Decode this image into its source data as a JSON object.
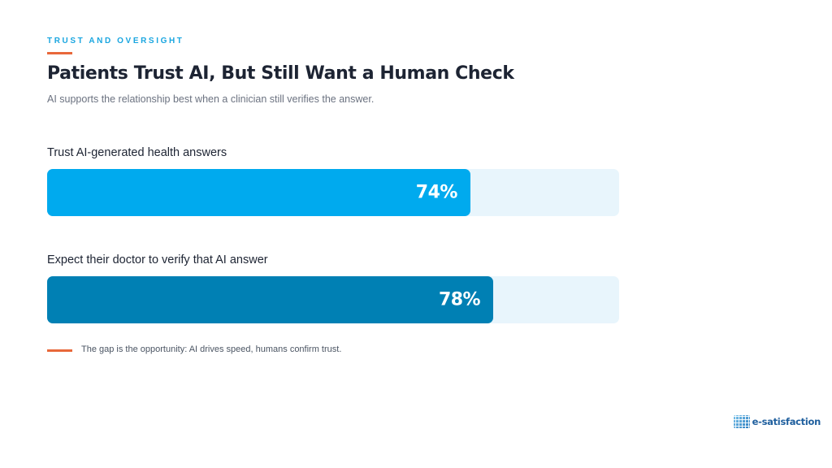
{
  "header": {
    "eyebrow": "TRUST AND OVERSIGHT",
    "title": "Patients Trust AI, But Still Want a Human Check",
    "subtitle": "AI supports the relationship best when a clinician still verifies the answer."
  },
  "chart_data": {
    "type": "bar",
    "orientation": "horizontal",
    "max": 100,
    "categories": [
      "Trust AI-generated health answers",
      "Expect their doctor to verify that AI answer"
    ],
    "values": [
      74,
      78
    ],
    "value_labels": [
      "74%",
      "78%"
    ],
    "colors": [
      "#00aaee",
      "#0080b4"
    ],
    "track_color": "#e8f5fc"
  },
  "note": "The gap is the opportunity: AI drives speed, humans confirm trust.",
  "logo": {
    "text": "e-satisfaction",
    "icon": "grid-logo-icon"
  },
  "accent": "#e8683a"
}
